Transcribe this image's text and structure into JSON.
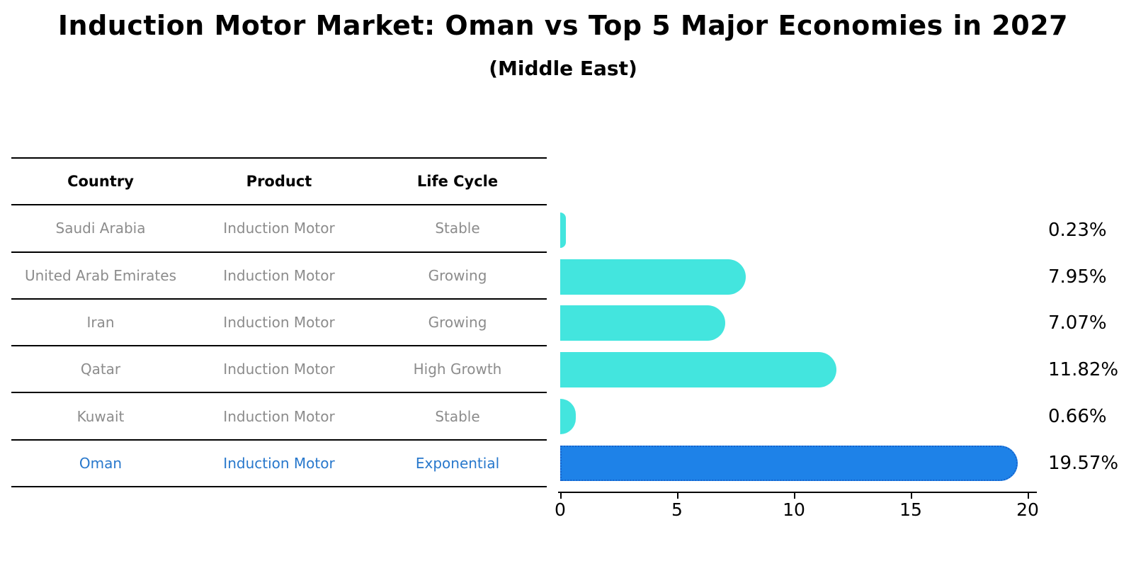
{
  "title": "Induction Motor Market: Oman vs Top 5 Major Economies in 2027",
  "subtitle": "(Middle East)",
  "table": {
    "headers": [
      "Country",
      "Product",
      "Life Cycle"
    ],
    "rows": [
      {
        "country": "Saudi Arabia",
        "product": "Induction Motor",
        "life_cycle": "Stable",
        "highlight": false
      },
      {
        "country": "United Arab Emirates",
        "product": "Induction Motor",
        "life_cycle": "Growing",
        "highlight": false
      },
      {
        "country": "Iran",
        "product": "Induction Motor",
        "life_cycle": "Growing",
        "highlight": false
      },
      {
        "country": "Qatar",
        "product": "Induction Motor",
        "life_cycle": "High Growth",
        "highlight": false
      },
      {
        "country": "Kuwait",
        "product": "Induction Motor",
        "life_cycle": "Stable",
        "highlight": false
      },
      {
        "country": "Oman",
        "product": "Induction Motor",
        "life_cycle": "Exponential",
        "highlight": true
      }
    ]
  },
  "chart_data": {
    "type": "bar",
    "orientation": "horizontal",
    "title": "Induction Motor Market: Oman vs Top 5 Major Economies in 2027",
    "subtitle": "(Middle East)",
    "categories": [
      "Saudi Arabia",
      "United Arab Emirates",
      "Iran",
      "Qatar",
      "Kuwait",
      "Oman"
    ],
    "values": [
      0.23,
      7.95,
      7.07,
      11.82,
      0.66,
      19.57
    ],
    "value_labels": [
      "0.23%",
      "7.95%",
      "7.07%",
      "11.82%",
      "0.66%",
      "19.57%"
    ],
    "xlim": [
      0,
      20
    ],
    "xticks": [
      0,
      5,
      10,
      15,
      20
    ],
    "grid": false,
    "legend": "none",
    "bar_color": "#43e5de",
    "highlight_color": "#1e82e8",
    "highlight_edge_color": "#1663cc",
    "highlight_text_color": "#2878cc",
    "highlight_index": 5
  }
}
